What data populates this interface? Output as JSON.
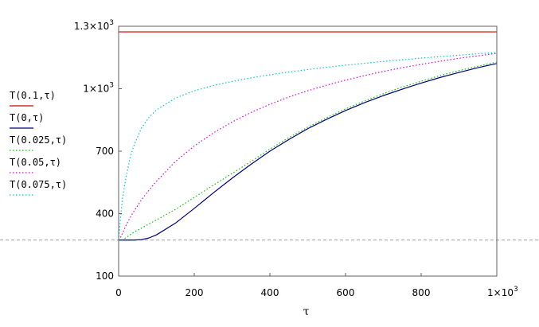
{
  "chart_data": {
    "type": "line",
    "xlabel": "τ",
    "ylabel": "",
    "xlim": [
      0,
      1000
    ],
    "ylim": [
      100,
      1300
    ],
    "x_ticks": [
      {
        "value": 0,
        "label": "0"
      },
      {
        "value": 200,
        "label": "200"
      },
      {
        "value": 400,
        "label": "400"
      },
      {
        "value": 600,
        "label": "600"
      },
      {
        "value": 800,
        "label": "800"
      },
      {
        "value": 1000,
        "label": "1×10",
        "sup": "3"
      }
    ],
    "y_ticks": [
      {
        "value": 100,
        "label": "100"
      },
      {
        "value": 400,
        "label": "400"
      },
      {
        "value": 700,
        "label": "700"
      },
      {
        "value": 1000,
        "label": "1×10",
        "sup": "3"
      },
      {
        "value": 1300,
        "label": "1.3×10",
        "sup": "3"
      }
    ],
    "reference_line": {
      "y": 273,
      "color": "#a0a0a0",
      "style": "dashed"
    },
    "legend_position": "left",
    "grid": false,
    "series": [
      {
        "name": "T(0.1,τ)",
        "color": "#cc0000",
        "style": "solid",
        "x": [
          0,
          1000
        ],
        "y": [
          1273,
          1273
        ]
      },
      {
        "name": "T(0,τ)",
        "color": "#000080",
        "style": "solid",
        "x": [
          0,
          20,
          40,
          60,
          80,
          100,
          150,
          200,
          250,
          300,
          350,
          400,
          450,
          500,
          550,
          600,
          650,
          700,
          750,
          800,
          850,
          900,
          950,
          1000
        ],
        "y": [
          273,
          273,
          273,
          275,
          283,
          298,
          354,
          425,
          499,
          570,
          637,
          700,
          756,
          808,
          853,
          895,
          933,
          967,
          998,
          1027,
          1054,
          1078,
          1101,
          1121
        ]
      },
      {
        "name": "T(0.025,τ)",
        "color": "#00cc00",
        "style": "dotted",
        "x": [
          0,
          10,
          20,
          30,
          40,
          60,
          80,
          100,
          150,
          200,
          250,
          300,
          350,
          400,
          450,
          500,
          550,
          600,
          650,
          700,
          750,
          800,
          850,
          900,
          950,
          1000
        ],
        "y": [
          273,
          275,
          285,
          298,
          310,
          330,
          350,
          370,
          420,
          478,
          536,
          593,
          650,
          710,
          765,
          815,
          861,
          903,
          941,
          976,
          1008,
          1036,
          1063,
          1087,
          1108,
          1128
        ]
      },
      {
        "name": "T(0.05,τ)",
        "color": "#dd00dd",
        "style": "dotted",
        "x": [
          0,
          5,
          10,
          20,
          30,
          40,
          60,
          80,
          100,
          150,
          200,
          250,
          300,
          350,
          400,
          450,
          500,
          550,
          600,
          650,
          700,
          750,
          800,
          850,
          900,
          950,
          1000
        ],
        "y": [
          273,
          285,
          305,
          345,
          380,
          410,
          465,
          512,
          555,
          650,
          725,
          787,
          840,
          886,
          925,
          960,
          990,
          1017,
          1041,
          1063,
          1083,
          1101,
          1117,
          1132,
          1146,
          1158,
          1170
        ]
      },
      {
        "name": "T(0.075,τ)",
        "color": "#00cccc",
        "style": "dotted",
        "x": [
          0,
          5,
          10,
          20,
          30,
          40,
          60,
          80,
          100,
          150,
          200,
          250,
          300,
          350,
          400,
          450,
          500,
          550,
          600,
          650,
          700,
          750,
          800,
          850,
          900,
          950,
          1000
        ],
        "y": [
          273,
          380,
          470,
          580,
          665,
          725,
          810,
          862,
          898,
          955,
          990,
          1015,
          1035,
          1052,
          1067,
          1080,
          1092,
          1103,
          1113,
          1122,
          1131,
          1139,
          1147,
          1154,
          1161,
          1168,
          1174
        ]
      }
    ]
  }
}
